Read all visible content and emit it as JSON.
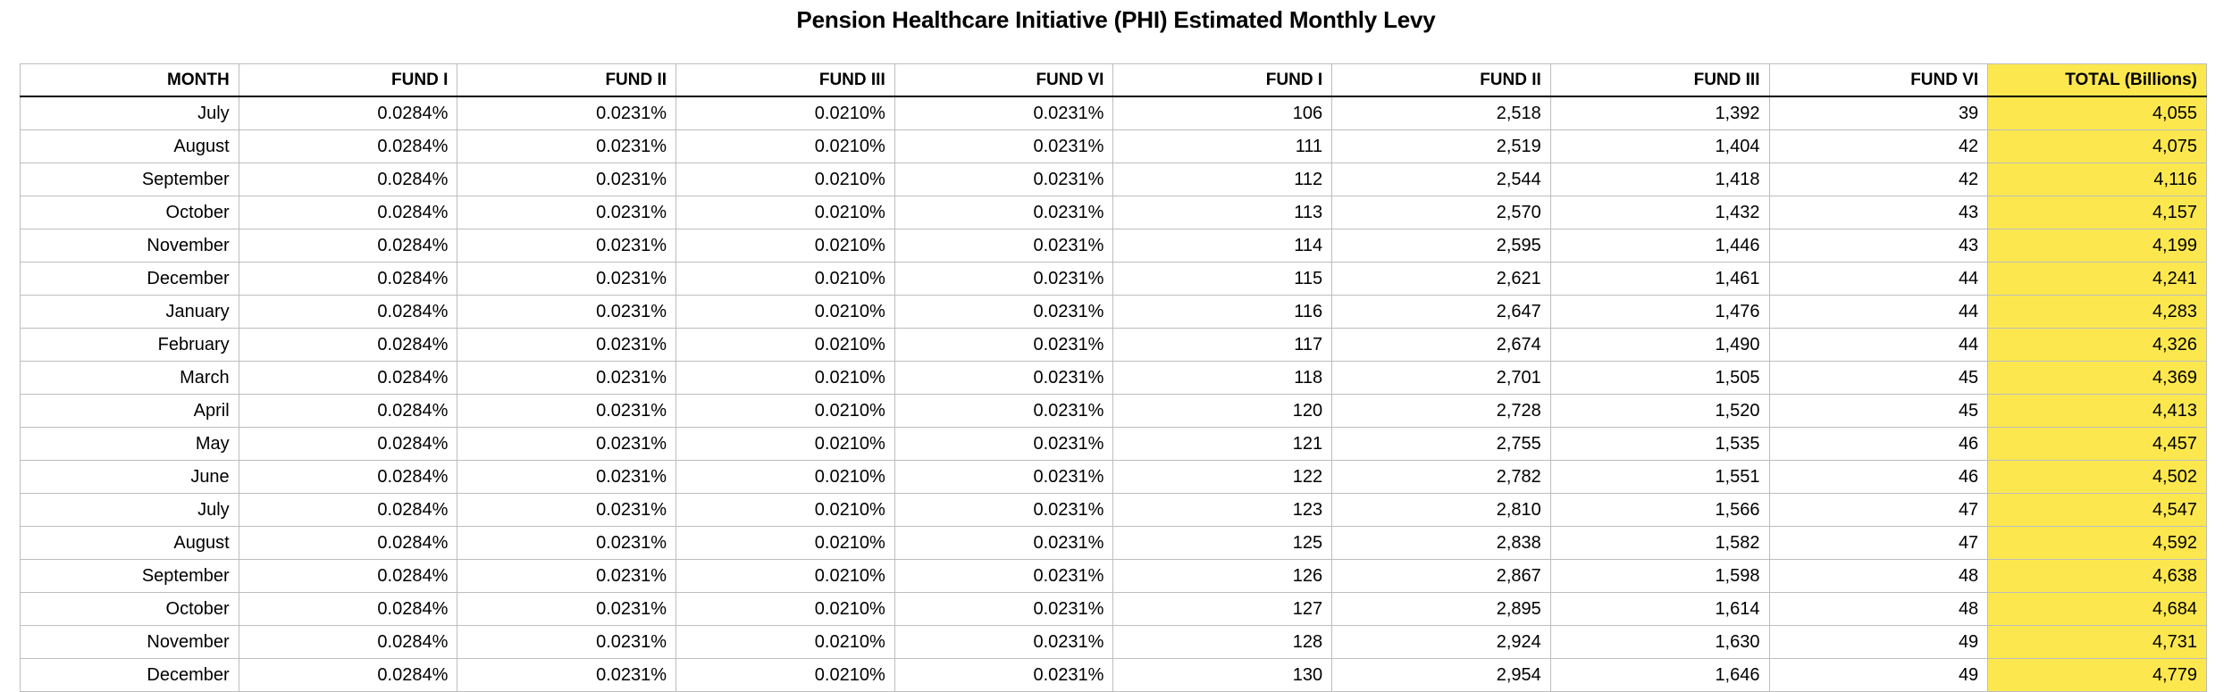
{
  "title": "Pension Healthcare Initiative (PHI) Estimated Monthly Levy",
  "colors": {
    "total_highlight": "#FCE84E",
    "grid_line": "#BDBDBD",
    "header_rule": "#000000"
  },
  "table": {
    "columns": [
      "MONTH",
      "FUND I",
      "FUND II",
      "FUND III",
      "FUND VI",
      "FUND I",
      "FUND II",
      "FUND III",
      "FUND VI",
      "TOTAL (Billions)"
    ],
    "rows": [
      [
        "July",
        "0.0284%",
        "0.0231%",
        "0.0210%",
        "0.0231%",
        "106",
        "2,518",
        "1,392",
        "39",
        "4,055"
      ],
      [
        "August",
        "0.0284%",
        "0.0231%",
        "0.0210%",
        "0.0231%",
        "111",
        "2,519",
        "1,404",
        "42",
        "4,075"
      ],
      [
        "September",
        "0.0284%",
        "0.0231%",
        "0.0210%",
        "0.0231%",
        "112",
        "2,544",
        "1,418",
        "42",
        "4,116"
      ],
      [
        "October",
        "0.0284%",
        "0.0231%",
        "0.0210%",
        "0.0231%",
        "113",
        "2,570",
        "1,432",
        "43",
        "4,157"
      ],
      [
        "November",
        "0.0284%",
        "0.0231%",
        "0.0210%",
        "0.0231%",
        "114",
        "2,595",
        "1,446",
        "43",
        "4,199"
      ],
      [
        "December",
        "0.0284%",
        "0.0231%",
        "0.0210%",
        "0.0231%",
        "115",
        "2,621",
        "1,461",
        "44",
        "4,241"
      ],
      [
        "January",
        "0.0284%",
        "0.0231%",
        "0.0210%",
        "0.0231%",
        "116",
        "2,647",
        "1,476",
        "44",
        "4,283"
      ],
      [
        "February",
        "0.0284%",
        "0.0231%",
        "0.0210%",
        "0.0231%",
        "117",
        "2,674",
        "1,490",
        "44",
        "4,326"
      ],
      [
        "March",
        "0.0284%",
        "0.0231%",
        "0.0210%",
        "0.0231%",
        "118",
        "2,701",
        "1,505",
        "45",
        "4,369"
      ],
      [
        "April",
        "0.0284%",
        "0.0231%",
        "0.0210%",
        "0.0231%",
        "120",
        "2,728",
        "1,520",
        "45",
        "4,413"
      ],
      [
        "May",
        "0.0284%",
        "0.0231%",
        "0.0210%",
        "0.0231%",
        "121",
        "2,755",
        "1,535",
        "46",
        "4,457"
      ],
      [
        "June",
        "0.0284%",
        "0.0231%",
        "0.0210%",
        "0.0231%",
        "122",
        "2,782",
        "1,551",
        "46",
        "4,502"
      ],
      [
        "July",
        "0.0284%",
        "0.0231%",
        "0.0210%",
        "0.0231%",
        "123",
        "2,810",
        "1,566",
        "47",
        "4,547"
      ],
      [
        "August",
        "0.0284%",
        "0.0231%",
        "0.0210%",
        "0.0231%",
        "125",
        "2,838",
        "1,582",
        "47",
        "4,592"
      ],
      [
        "September",
        "0.0284%",
        "0.0231%",
        "0.0210%",
        "0.0231%",
        "126",
        "2,867",
        "1,598",
        "48",
        "4,638"
      ],
      [
        "October",
        "0.0284%",
        "0.0231%",
        "0.0210%",
        "0.0231%",
        "127",
        "2,895",
        "1,614",
        "48",
        "4,684"
      ],
      [
        "November",
        "0.0284%",
        "0.0231%",
        "0.0210%",
        "0.0231%",
        "128",
        "2,924",
        "1,630",
        "49",
        "4,731"
      ],
      [
        "December",
        "0.0284%",
        "0.0231%",
        "0.0210%",
        "0.0231%",
        "130",
        "2,954",
        "1,646",
        "49",
        "4,779"
      ]
    ]
  }
}
